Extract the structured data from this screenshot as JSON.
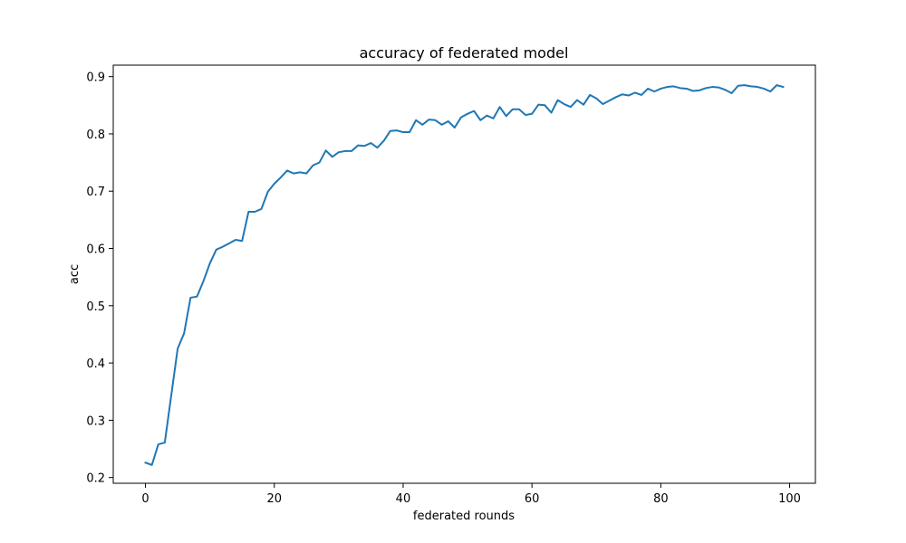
{
  "chart_data": {
    "type": "line",
    "title": "accuracy of federated model",
    "xlabel": "federated rounds",
    "ylabel": "acc",
    "xlim": [
      -5,
      104
    ],
    "ylim": [
      0.19,
      0.92
    ],
    "xticks": [
      0,
      20,
      40,
      60,
      80,
      100
    ],
    "xtick_labels": [
      "0",
      "20",
      "40",
      "60",
      "80",
      "100"
    ],
    "yticks": [
      0.2,
      0.3,
      0.4,
      0.5,
      0.6,
      0.7,
      0.8,
      0.9
    ],
    "ytick_labels": [
      "0.2",
      "0.3",
      "0.4",
      "0.5",
      "0.6",
      "0.7",
      "0.8",
      "0.9"
    ],
    "grid": false,
    "line_color": "#1f77b4",
    "series": [
      {
        "x": [
          0,
          1,
          2,
          3,
          4,
          5,
          6,
          7,
          8,
          9,
          10,
          11,
          12,
          13,
          14,
          15,
          16,
          17,
          18,
          19,
          20,
          21,
          22,
          23,
          24,
          25,
          26,
          27,
          28,
          29,
          30,
          31,
          32,
          33,
          34,
          35,
          36,
          37,
          38,
          39,
          40,
          41,
          42,
          43,
          44,
          45,
          46,
          47,
          48,
          49,
          50,
          51,
          52,
          53,
          54,
          55,
          56,
          57,
          58,
          59,
          60,
          61,
          62,
          63,
          64,
          65,
          66,
          67,
          68,
          69,
          70,
          71,
          72,
          73,
          74,
          75,
          76,
          77,
          78,
          79,
          80,
          81,
          82,
          83,
          84,
          85,
          86,
          87,
          88,
          89,
          90,
          91,
          92,
          93,
          94,
          95,
          96,
          97,
          98,
          99
        ],
        "y": [
          0.226,
          0.222,
          0.258,
          0.261,
          0.343,
          0.425,
          0.452,
          0.514,
          0.516,
          0.543,
          0.574,
          0.598,
          0.603,
          0.609,
          0.615,
          0.613,
          0.664,
          0.664,
          0.669,
          0.699,
          0.713,
          0.724,
          0.736,
          0.731,
          0.733,
          0.731,
          0.745,
          0.75,
          0.771,
          0.76,
          0.768,
          0.77,
          0.77,
          0.78,
          0.779,
          0.784,
          0.776,
          0.788,
          0.805,
          0.806,
          0.803,
          0.803,
          0.824,
          0.816,
          0.825,
          0.824,
          0.816,
          0.822,
          0.811,
          0.829,
          0.835,
          0.84,
          0.824,
          0.832,
          0.827,
          0.847,
          0.831,
          0.843,
          0.843,
          0.833,
          0.835,
          0.851,
          0.85,
          0.837,
          0.859,
          0.852,
          0.847,
          0.859,
          0.851,
          0.868,
          0.862,
          0.852,
          0.858,
          0.864,
          0.869,
          0.867,
          0.872,
          0.868,
          0.879,
          0.874,
          0.879,
          0.882,
          0.883,
          0.88,
          0.879,
          0.875,
          0.876,
          0.88,
          0.882,
          0.881,
          0.877,
          0.871,
          0.884,
          0.885,
          0.883,
          0.882,
          0.879,
          0.874,
          0.885,
          0.882
        ]
      }
    ]
  }
}
